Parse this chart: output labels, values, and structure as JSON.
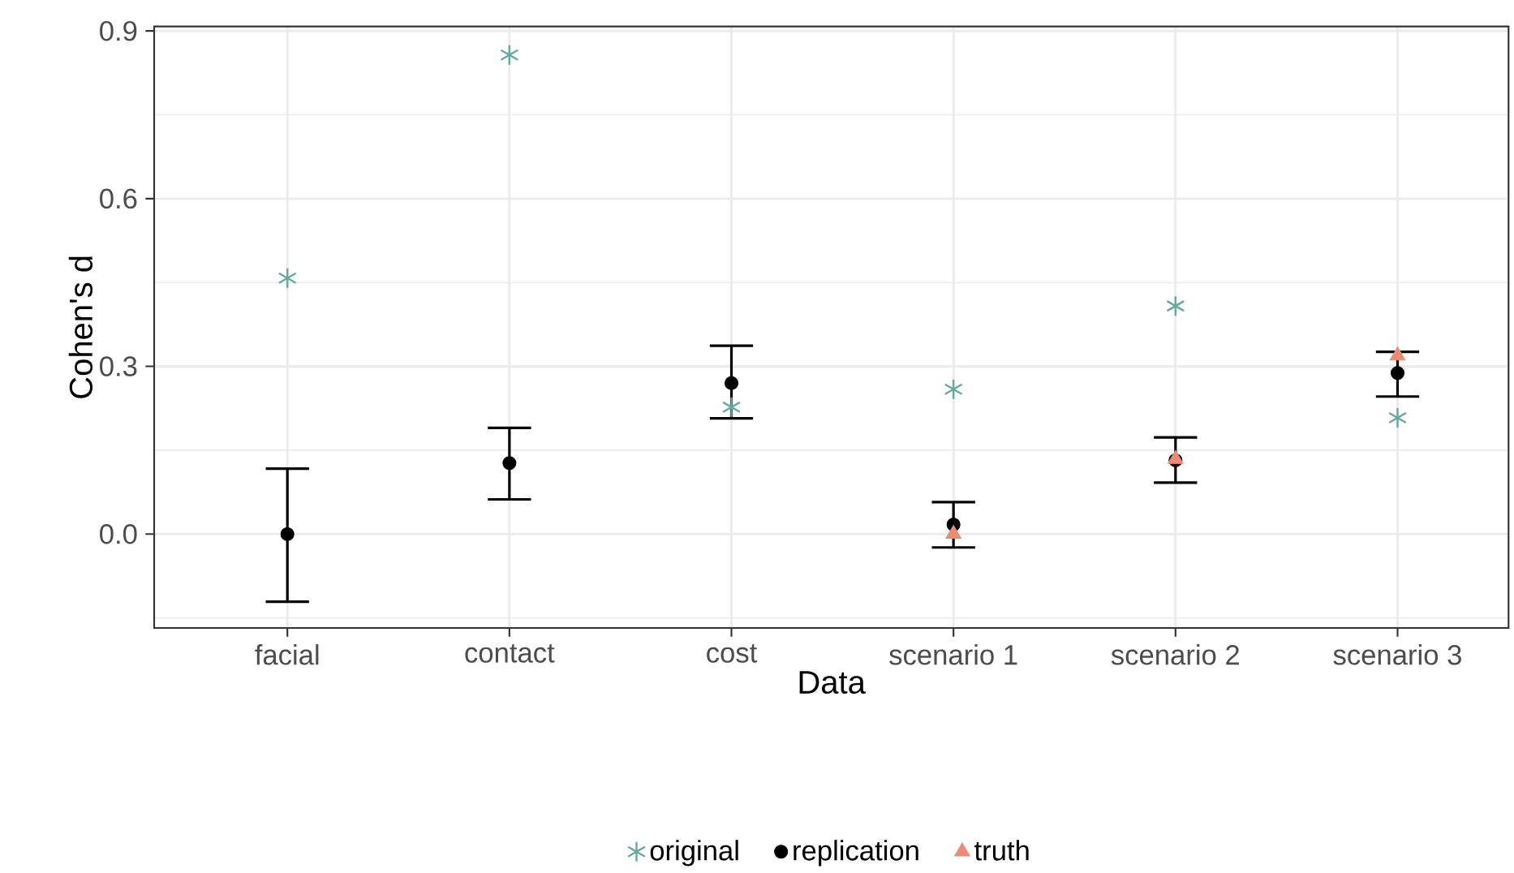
{
  "chart_data": {
    "type": "scatter",
    "xlabel": "Data",
    "ylabel": "Cohen's d",
    "categories": [
      "facial",
      "contact",
      "cost",
      "scenario 1",
      "scenario 2",
      "scenario 3"
    ],
    "series": [
      {
        "name": "original",
        "color": "#66a99d",
        "marker": "cross",
        "values": [
          0.458,
          0.857,
          0.227,
          0.259,
          0.408,
          0.208
        ]
      },
      {
        "name": "replication",
        "color": "#000000",
        "marker": "circle",
        "values": [
          0.0,
          0.127,
          0.27,
          0.017,
          0.132,
          0.288
        ],
        "errors": [
          [
            -0.121,
            0.117
          ],
          [
            0.062,
            0.19
          ],
          [
            0.207,
            0.337
          ],
          [
            -0.024,
            0.057
          ],
          [
            0.092,
            0.173
          ],
          [
            0.246,
            0.326
          ]
        ]
      },
      {
        "name": "truth",
        "color": "#ee8a73",
        "marker": "triangle",
        "values": [
          null,
          null,
          null,
          0.0,
          0.134,
          0.319
        ]
      }
    ],
    "ylim": [
      -0.168,
      0.908
    ],
    "yticks": [
      {
        "value": 0,
        "label": "0.0"
      },
      {
        "value": 0.3,
        "label": "0.3"
      },
      {
        "value": 0.6,
        "label": "0.6"
      },
      {
        "value": 0.9,
        "label": "0.9"
      }
    ],
    "grid": true,
    "legend": "bottom"
  }
}
